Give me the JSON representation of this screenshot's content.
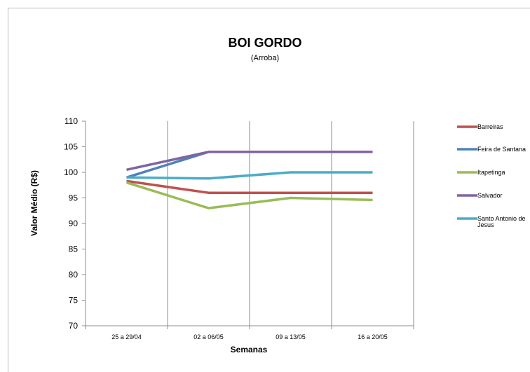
{
  "chart_data": {
    "type": "line",
    "title": "BOI GORDO",
    "subtitle": "(Arroba)",
    "xlabel": "Semanas",
    "ylabel": "Valor Médio (R$)",
    "categories": [
      "25 a 29/04",
      "02 a 06/05",
      "09 a 13/05",
      "16 a 20/05"
    ],
    "ylim": [
      70,
      110
    ],
    "yticks": [
      70,
      75,
      80,
      85,
      90,
      95,
      100,
      105,
      110
    ],
    "grid": "vertical",
    "legend_position": "right",
    "series": [
      {
        "name": "Barreiras",
        "color": "#c0504d",
        "values": [
          98.3,
          96,
          96,
          96
        ]
      },
      {
        "name": "Feira de Santana",
        "color": "#4f81bd",
        "values": [
          99,
          104,
          104,
          104
        ]
      },
      {
        "name": "Itapetinga",
        "color": "#9bbb59",
        "values": [
          98,
          93,
          95,
          94.6
        ]
      },
      {
        "name": "Salvador",
        "color": "#8064a2",
        "values": [
          100.5,
          104,
          104,
          104
        ]
      },
      {
        "name": "Santo Antonio de Jesus",
        "color": "#4bacc6",
        "values": [
          99,
          98.8,
          100,
          100
        ]
      }
    ]
  }
}
